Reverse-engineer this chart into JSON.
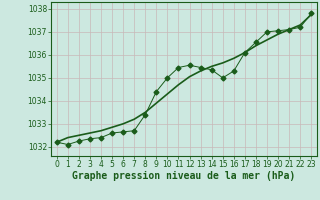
{
  "title": "Graphe pression niveau de la mer (hPa)",
  "xlabel_hours": [
    0,
    1,
    2,
    3,
    4,
    5,
    6,
    7,
    8,
    9,
    10,
    11,
    12,
    13,
    14,
    15,
    16,
    17,
    18,
    19,
    20,
    21,
    22,
    23
  ],
  "line1_y": [
    1032.2,
    1032.4,
    1032.5,
    1032.6,
    1032.7,
    1032.85,
    1033.0,
    1033.2,
    1033.5,
    1033.9,
    1034.3,
    1034.7,
    1035.05,
    1035.3,
    1035.5,
    1035.65,
    1035.85,
    1036.1,
    1036.4,
    1036.65,
    1036.9,
    1037.1,
    1037.3,
    1037.75
  ],
  "line2_y": [
    1032.2,
    1032.1,
    1032.25,
    1032.35,
    1032.4,
    1032.6,
    1032.65,
    1032.7,
    1033.4,
    1034.4,
    1035.0,
    1035.45,
    1035.55,
    1035.45,
    1035.35,
    1035.0,
    1035.3,
    1036.1,
    1036.55,
    1037.0,
    1037.05,
    1037.1,
    1037.2,
    1037.8
  ],
  "ylim": [
    1031.6,
    1038.3
  ],
  "yticks": [
    1032,
    1033,
    1034,
    1035,
    1036,
    1037,
    1038
  ],
  "bg_color": "#cce8e0",
  "grid_color": "#c8b8b8",
  "line_color": "#1a5c1a",
  "marker": "D",
  "marker_size": 2.5,
  "title_fontsize": 7.0,
  "tick_fontsize": 5.5
}
